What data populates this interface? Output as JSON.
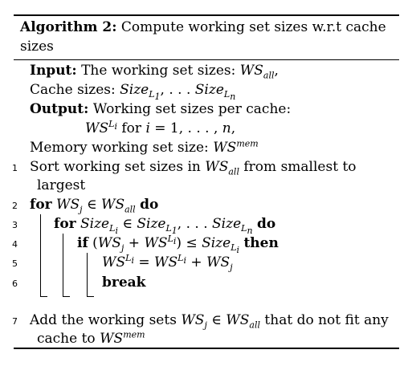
{
  "algorithm": {
    "label": "Algorithm 2:",
    "title": "Compute working set sizes w.r.t cache sizes",
    "input_kw": "Input:",
    "input_text": "The working set sizes:",
    "cache_text": "Cache sizes:",
    "output_kw": "Output:",
    "output_text": "Working set sizes per cache:",
    "for_i_text": "for i = 1, . . . , n,",
    "memory_text": "Memory working set size:",
    "lines": [
      {
        "num": "1",
        "text": "Sort working set sizes in WSall from smallest to"
      },
      {
        "num": "",
        "text": "largest"
      },
      {
        "num": "2",
        "text": "for WSj ∈ WSall do"
      },
      {
        "num": "3",
        "text": "for SizeLi ∈ SizeL1, . . . SizeLn do"
      },
      {
        "num": "4",
        "text": "if (WSj + WSLi) ≤ SizeLi then"
      },
      {
        "num": "5",
        "text": "WSLi = WSLi + WSj"
      },
      {
        "num": "6",
        "text": "break"
      },
      {
        "num": "7",
        "text": "Add the working sets WSj ∈ WSall that do not fit any"
      },
      {
        "num": "",
        "text": "cache to WSmem"
      }
    ]
  }
}
